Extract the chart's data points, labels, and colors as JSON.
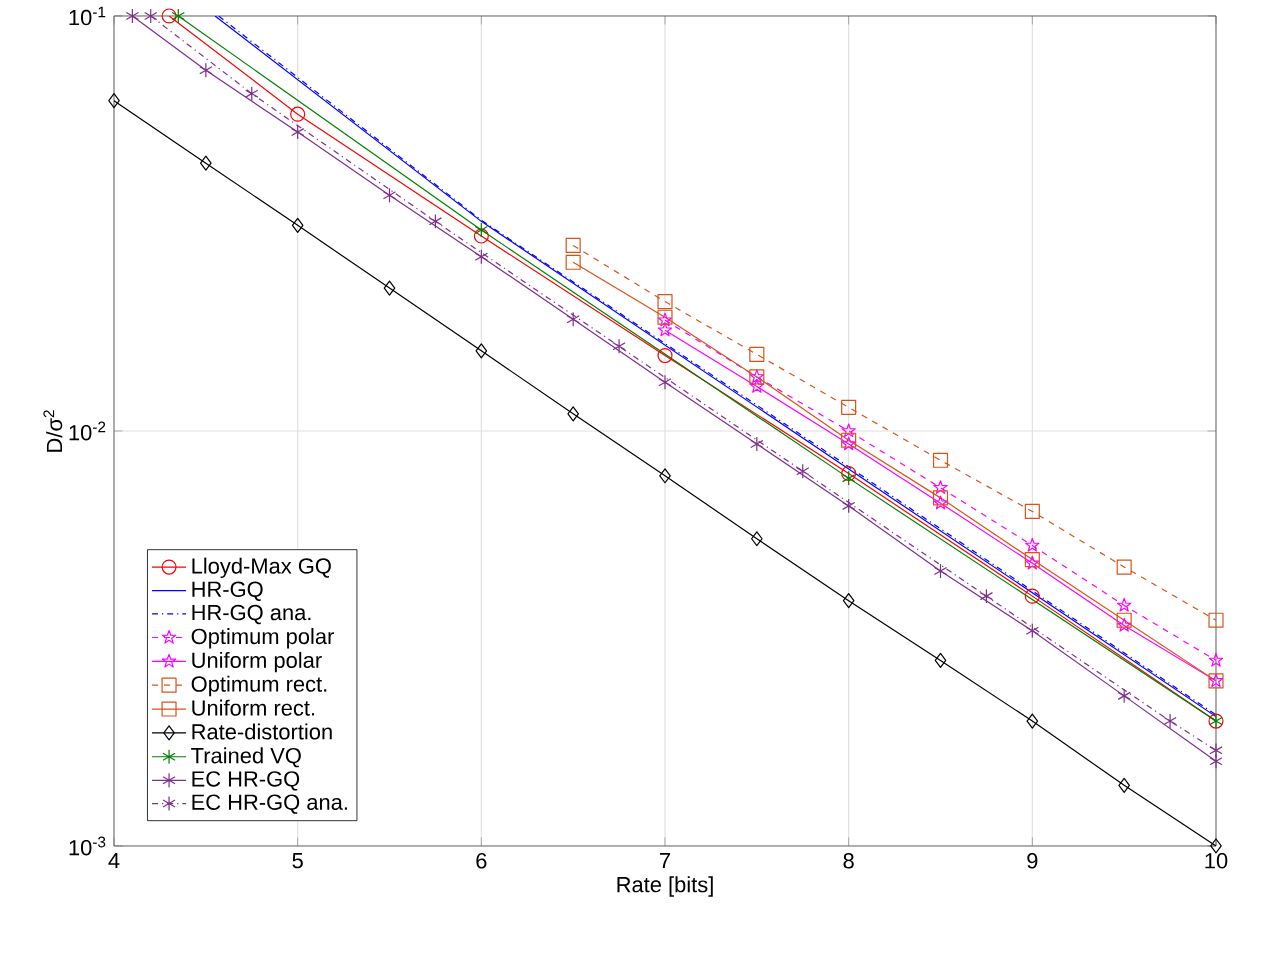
{
  "chart_data": {
    "type": "line",
    "xlabel": "Rate [bits]",
    "ylabel": "D/σ$^{2}$",
    "log": "y",
    "grid": true,
    "legend": "bottom left",
    "xlim": [
      4,
      10
    ],
    "xticks": [
      4,
      5,
      6,
      7,
      8,
      9,
      10
    ],
    "ylim": [
      0.001,
      0.1
    ],
    "yticks": [
      {
        "value": 0.001,
        "label": "10$^{-3}$"
      },
      {
        "value": 0.01,
        "label": "10$^{-2}$"
      },
      {
        "value": 0.1,
        "label": "10$^{-1}$"
      }
    ],
    "series": [
      {
        "name": "Lloyd-Max GQ",
        "color": "#ff0000",
        "marker": "circle",
        "line_style": "solid",
        "x": [
          4.3,
          5,
          6,
          7,
          8,
          9,
          10
        ],
        "values": [
          0.1,
          0.058,
          0.0295,
          0.0152,
          0.0079,
          0.004,
          0.002
        ]
      },
      {
        "name": "HR-GQ",
        "color": "#0000ff",
        "marker": "none",
        "line_style": "solid",
        "x": [
          4.55,
          6,
          8,
          10
        ],
        "values": [
          0.1,
          0.032,
          0.0081,
          0.00205
        ]
      },
      {
        "name": "HR-GQ ana.",
        "color": "#0000ff",
        "marker": "none",
        "line_style": "dashdot",
        "x": [
          4.57,
          6,
          8,
          10
        ],
        "values": [
          0.1,
          0.0322,
          0.0082,
          0.00207
        ]
      },
      {
        "name": "Optimum polar",
        "color": "#ff00ff",
        "marker": "star",
        "line_style": "dashed",
        "x": [
          7,
          7.5,
          8,
          8.5,
          9,
          9.5,
          10
        ],
        "values": [
          0.0185,
          0.0135,
          0.01,
          0.0073,
          0.0053,
          0.0038,
          0.0028
        ]
      },
      {
        "name": "Uniform polar",
        "color": "#ff00ff",
        "marker": "star",
        "line_style": "solid",
        "x": [
          7,
          7.5,
          8,
          8.5,
          9,
          9.5,
          10
        ],
        "values": [
          0.0175,
          0.0128,
          0.0093,
          0.0067,
          0.0048,
          0.0034,
          0.0025
        ]
      },
      {
        "name": "Optimum rect.",
        "color": "#d95319",
        "marker": "square",
        "line_style": "dashed",
        "x": [
          6.5,
          7,
          7.5,
          8,
          8.5,
          9,
          9.5,
          10
        ],
        "values": [
          0.028,
          0.0205,
          0.0153,
          0.0114,
          0.0085,
          0.0064,
          0.0047,
          0.0035
        ]
      },
      {
        "name": "Uniform rect.",
        "color": "#d95319",
        "marker": "square",
        "line_style": "solid",
        "x": [
          6.5,
          7,
          7.5,
          8,
          8.5,
          9,
          9.5,
          10
        ],
        "values": [
          0.0255,
          0.0188,
          0.0135,
          0.0095,
          0.0069,
          0.0049,
          0.0035,
          0.0025
        ]
      },
      {
        "name": "Rate-distortion",
        "color": "#000000",
        "marker": "diamond",
        "line_style": "solid",
        "x": [
          4,
          4.5,
          5,
          5.5,
          6,
          6.5,
          7,
          7.5,
          8,
          8.5,
          9,
          9.5,
          10
        ],
        "values": [
          0.0625,
          0.0442,
          0.0313,
          0.0221,
          0.0156,
          0.011,
          0.0078,
          0.0055,
          0.0039,
          0.0028,
          0.002,
          0.0014,
          0.001
        ]
      },
      {
        "name": "Trained VQ",
        "color": "#008000",
        "marker": "cross",
        "line_style": "solid",
        "x": [
          4.35,
          6,
          8,
          10
        ],
        "values": [
          0.1,
          0.0305,
          0.0077,
          0.002
        ]
      },
      {
        "name": "EC HR-GQ",
        "color": "#7e2f8e",
        "marker": "cross",
        "line_style": "solid",
        "x": [
          4.1,
          4.5,
          5,
          5.5,
          6,
          6.5,
          7,
          7.5,
          8,
          8.5,
          9,
          9.5,
          10
        ],
        "values": [
          0.1,
          0.074,
          0.0525,
          0.037,
          0.0263,
          0.0186,
          0.0131,
          0.0093,
          0.0066,
          0.0046,
          0.0033,
          0.0023,
          0.0016
        ]
      },
      {
        "name": "EC HR-GQ ana.",
        "color": "#7e2f8e",
        "marker": "cross",
        "line_style": "dashdot",
        "x": [
          4.2,
          4.75,
          5.75,
          6.75,
          7.75,
          8.75,
          9.75,
          10
        ],
        "values": [
          0.1,
          0.065,
          0.032,
          0.016,
          0.008,
          0.004,
          0.002,
          0.0017
        ]
      }
    ]
  }
}
